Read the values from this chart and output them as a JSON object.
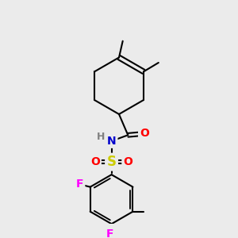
{
  "bg_color": "#ebebeb",
  "bond_color": "#000000",
  "bond_width": 1.5,
  "atom_colors": {
    "N": "#0000cc",
    "O": "#ff0000",
    "S": "#cccc00",
    "F": "#ff00ff",
    "H": "#808080",
    "C": "#000000"
  },
  "font_size": 10
}
